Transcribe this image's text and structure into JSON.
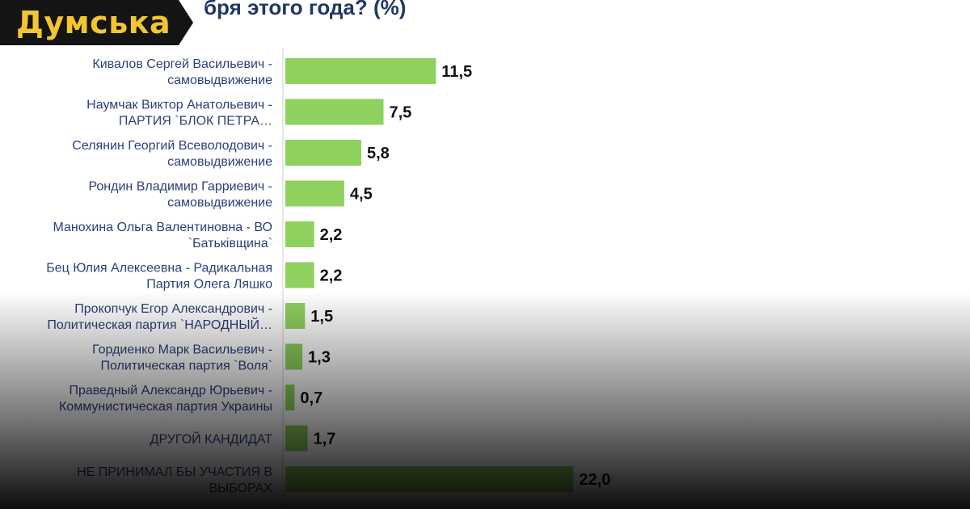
{
  "logo": {
    "text": "Думська"
  },
  "colors": {
    "bar": "#8fd15f",
    "label": "#2e3f78",
    "value": "#111111",
    "logo_bg": "#141414",
    "logo_text": "#f2c531"
  },
  "chart_data": {
    "type": "bar",
    "orientation": "horizontal",
    "title": "бря этого года? (%)",
    "categories": [
      [
        "Кивалов Сергей Васильевич -",
        "самовыдвижение"
      ],
      [
        "Наумчак Виктор Анатольевич -",
        "ПАРТИЯ `БЛОК ПЕТРА…"
      ],
      [
        "Селянин Георгий Всеволодович -",
        "самовыдвижение"
      ],
      [
        "Рондин Владимир Гарриевич -",
        "самовыдвижение"
      ],
      [
        "Манохина Ольга Валентиновна - ВО",
        "`Батьківщина`"
      ],
      [
        "Бец Юлия Алексеевна - Радикальная",
        "Партия Олега Ляшко"
      ],
      [
        "Прокопчук Егор Александрович -",
        "Политическая партия `НАРОДНЫЙ…"
      ],
      [
        "Гордиенко Марк Васильевич -",
        "Политическая партия `Воля`"
      ],
      [
        "Праведный Александр Юрьевич -",
        "Коммунистическая партия Украины"
      ],
      [
        "ДРУГОЙ КАНДИДАТ"
      ],
      [
        "НЕ ПРИНИМАЛ БЫ УЧАСТИЯ В",
        "ВЫБОРАХ"
      ]
    ],
    "values": [
      11.5,
      7.5,
      5.8,
      4.5,
      2.2,
      2.2,
      1.5,
      1.3,
      0.7,
      1.7,
      22.0
    ],
    "value_labels": [
      "11,5",
      "7,5",
      "5,8",
      "4,5",
      "2,2",
      "2,2",
      "1,5",
      "1,3",
      "0,7",
      "1,7",
      "22,0"
    ],
    "grid": false,
    "legend": "none"
  }
}
